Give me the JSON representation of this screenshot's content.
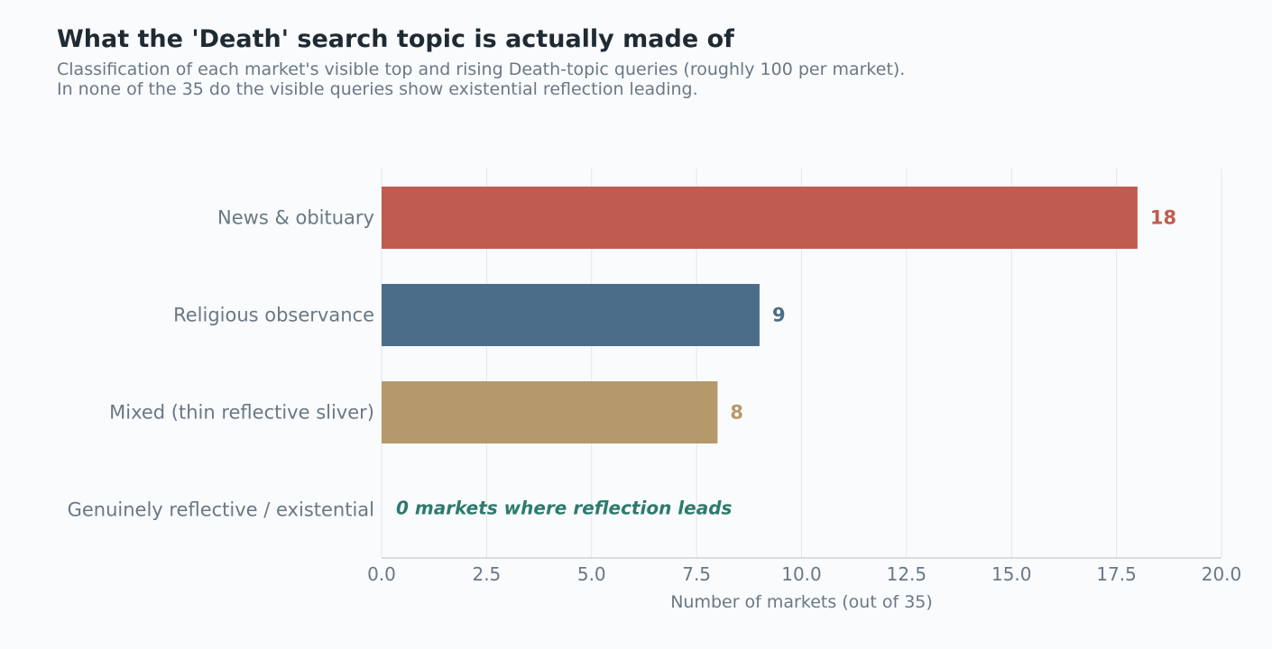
{
  "header": {
    "title": "What the 'Death' search topic is actually made of",
    "subtitle_lines": [
      "Classification of each market's visible top and rising Death-topic queries (roughly 100 per market).",
      "In none of the 35 do the visible queries show existential reflection leading."
    ]
  },
  "chart_data": {
    "type": "bar",
    "orientation": "horizontal",
    "categories": [
      "News & obituary",
      "Religious observance",
      "Mixed (thin reflective sliver)",
      "Genuinely reflective / existential"
    ],
    "values": [
      18,
      9,
      8,
      0
    ],
    "value_labels": [
      "18",
      "9",
      "8",
      ""
    ],
    "colors": [
      "#c05c4f",
      "#4b6d8a",
      "#b5996b",
      "#2e7a6e"
    ],
    "xlabel": "Number of markets (out of 35)",
    "xlim": [
      0,
      20
    ],
    "xticks": [
      "0.0",
      "2.5",
      "5.0",
      "7.5",
      "10.0",
      "12.5",
      "15.0",
      "17.5",
      "20.0"
    ],
    "grid": "vertical",
    "annotation": "0 markets where reflection leads",
    "annotation_color": "#2e7a6e"
  }
}
